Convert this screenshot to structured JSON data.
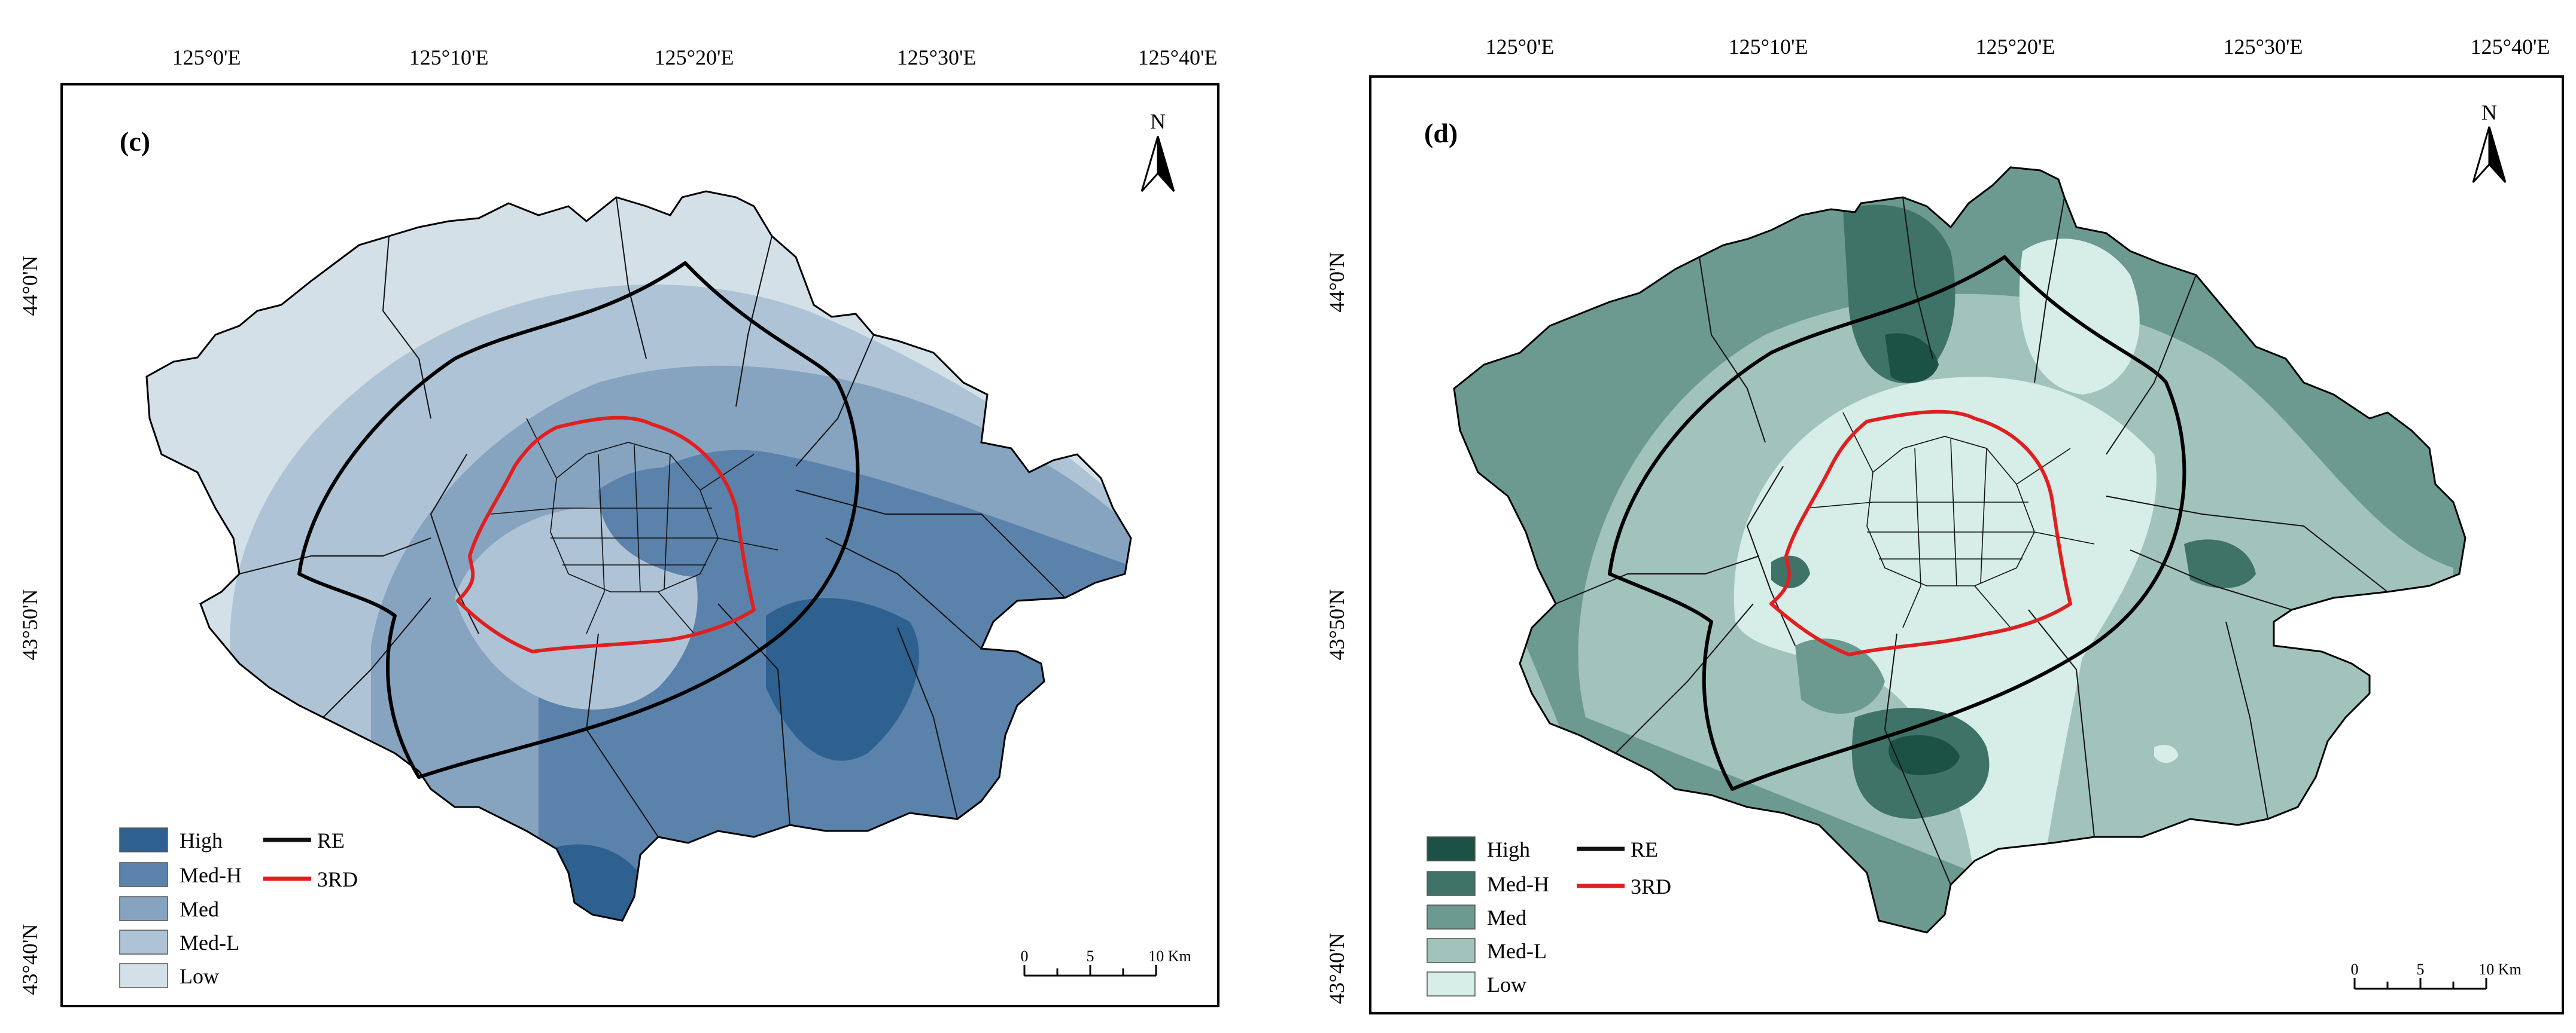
{
  "figure": {
    "maps": [
      {
        "panel_label": "(c)",
        "lon_ticks": [
          "125°0'E",
          "125°10'E",
          "125°20'E",
          "125°30'E",
          "125°40'E"
        ],
        "lat_ticks": [
          "44°0'N",
          "43°50'N",
          "43°40'N"
        ],
        "north_label": "N",
        "legend": {
          "classes": [
            {
              "label": "High",
              "color": "#2e6090"
            },
            {
              "label": "Med-H",
              "color": "#5b82aa"
            },
            {
              "label": "Med",
              "color": "#86a3c0"
            },
            {
              "label": "Med-L",
              "color": "#aec3d5"
            },
            {
              "label": "Low",
              "color": "#d3e0e8"
            }
          ],
          "lines": [
            {
              "label": "RE",
              "color": "#111111"
            },
            {
              "label": "3RD",
              "color": "#e02020"
            }
          ]
        },
        "scale": {
          "ticks": [
            "0",
            "5",
            "10 Km"
          ]
        }
      },
      {
        "panel_label": "(d)",
        "lon_ticks": [
          "125°0'E",
          "125°10'E",
          "125°20'E",
          "125°30'E",
          "125°40'E"
        ],
        "lat_ticks": [
          "44°0'N",
          "43°50'N",
          "43°40'N"
        ],
        "north_label": "N",
        "legend": {
          "classes": [
            {
              "label": "High",
              "color": "#1c5246"
            },
            {
              "label": "Med-H",
              "color": "#3f7368"
            },
            {
              "label": "Med",
              "color": "#6d9a90"
            },
            {
              "label": "Med-L",
              "color": "#a2c3bb"
            },
            {
              "label": "Low",
              "color": "#d6ede8"
            }
          ],
          "lines": [
            {
              "label": "RE",
              "color": "#111111"
            },
            {
              "label": "3RD",
              "color": "#e02020"
            }
          ]
        },
        "scale": {
          "ticks": [
            "0",
            "5",
            "10 Km"
          ]
        }
      }
    ]
  }
}
